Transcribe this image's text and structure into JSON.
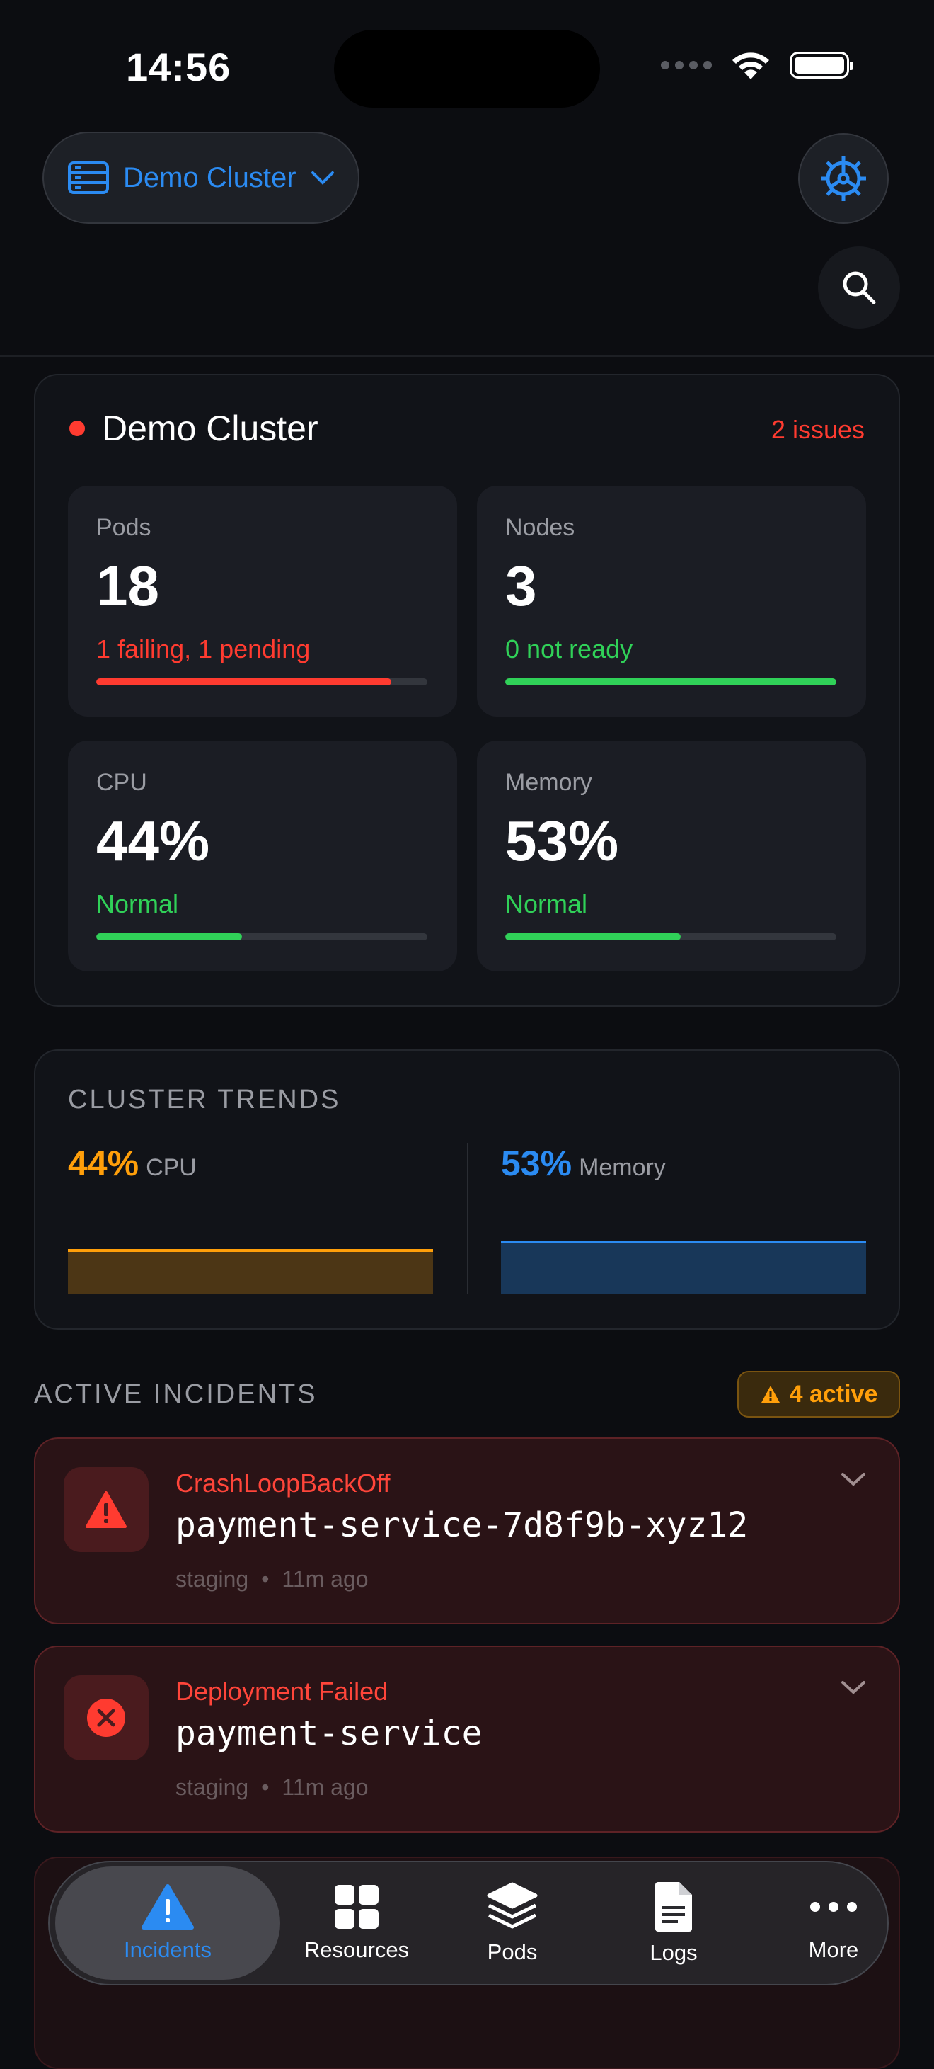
{
  "status_bar": {
    "time": "14:56"
  },
  "header": {
    "cluster_selector_label": "Demo Cluster"
  },
  "summary": {
    "title": "Demo Cluster",
    "issues": "2 issues",
    "stats": [
      {
        "label": "Pods",
        "value": "18",
        "note": "1 failing, 1 pending",
        "level": 0.89,
        "color": "#ff3b30"
      },
      {
        "label": "Nodes",
        "value": "3",
        "note": "0 not ready",
        "level": 1.0,
        "color": "#30d158"
      },
      {
        "label": "CPU",
        "value": "44%",
        "note": "Normal",
        "level": 0.44,
        "color": "#30d158"
      },
      {
        "label": "Memory",
        "value": "53%",
        "note": "Normal",
        "level": 0.53,
        "color": "#30d158"
      }
    ]
  },
  "trends": {
    "title": "CLUSTER TRENDS",
    "cpu": {
      "value": "44%",
      "label": "CPU",
      "color": "#ff9f0a"
    },
    "memory": {
      "value": "53%",
      "label": "Memory",
      "color": "#2b8bf2"
    }
  },
  "incidents": {
    "title": "ACTIVE INCIDENTS",
    "badge": "4 active",
    "items": [
      {
        "type": "CrashLoopBackOff",
        "name": "payment-service-7d8f9b-xyz12",
        "namespace": "staging",
        "age": "11m ago"
      },
      {
        "type": "Deployment Failed",
        "name": "payment-service",
        "namespace": "staging",
        "age": "11m ago"
      }
    ]
  },
  "tabs": [
    {
      "label": "Incidents",
      "icon": "warning-icon"
    },
    {
      "label": "Resources",
      "icon": "grid-icon"
    },
    {
      "label": "Pods",
      "icon": "layers-icon"
    },
    {
      "label": "Logs",
      "icon": "document-icon"
    },
    {
      "label": "More",
      "icon": "ellipsis-icon"
    }
  ],
  "colors": {
    "accent": "#2b8bf2",
    "danger": "#ff3b30",
    "ok": "#30d158",
    "warning": "#ff9f0a"
  }
}
